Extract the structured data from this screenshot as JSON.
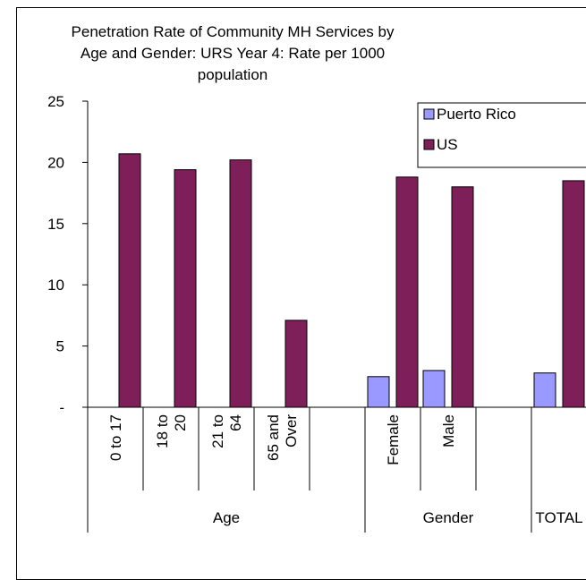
{
  "chart_data": {
    "type": "bar",
    "title": "Penetration Rate of Community MH Services by\nAge and Gender: URS Year 4: Rate per 1000\npopulation",
    "groups": [
      {
        "label": "Age",
        "categories": [
          "0 to 17",
          "18 to\n20",
          "21 to\n64",
          "65 and\nOver",
          ""
        ]
      },
      {
        "label": "Gender",
        "categories": [
          "Female",
          "Male",
          ""
        ]
      },
      {
        "label": "TOTAL",
        "categories": [
          ""
        ]
      }
    ],
    "categories": [
      "0 to 17",
      "18 to 20",
      "21 to 64",
      "65 and Over",
      "",
      "Female",
      "Male",
      "",
      ""
    ],
    "series": [
      {
        "name": "Puerto Rico",
        "color": "#9999FF",
        "values": [
          null,
          null,
          null,
          null,
          null,
          2.5,
          3.0,
          null,
          2.8
        ]
      },
      {
        "name": "US",
        "color": "#7F1F5A",
        "values": [
          20.7,
          19.4,
          20.2,
          7.1,
          null,
          18.8,
          18.0,
          null,
          18.5
        ]
      }
    ],
    "ylim": [
      0,
      25
    ],
    "yticks": [
      "-",
      "5",
      "10",
      "15",
      "20",
      "25"
    ],
    "legend_position": "top-right"
  }
}
